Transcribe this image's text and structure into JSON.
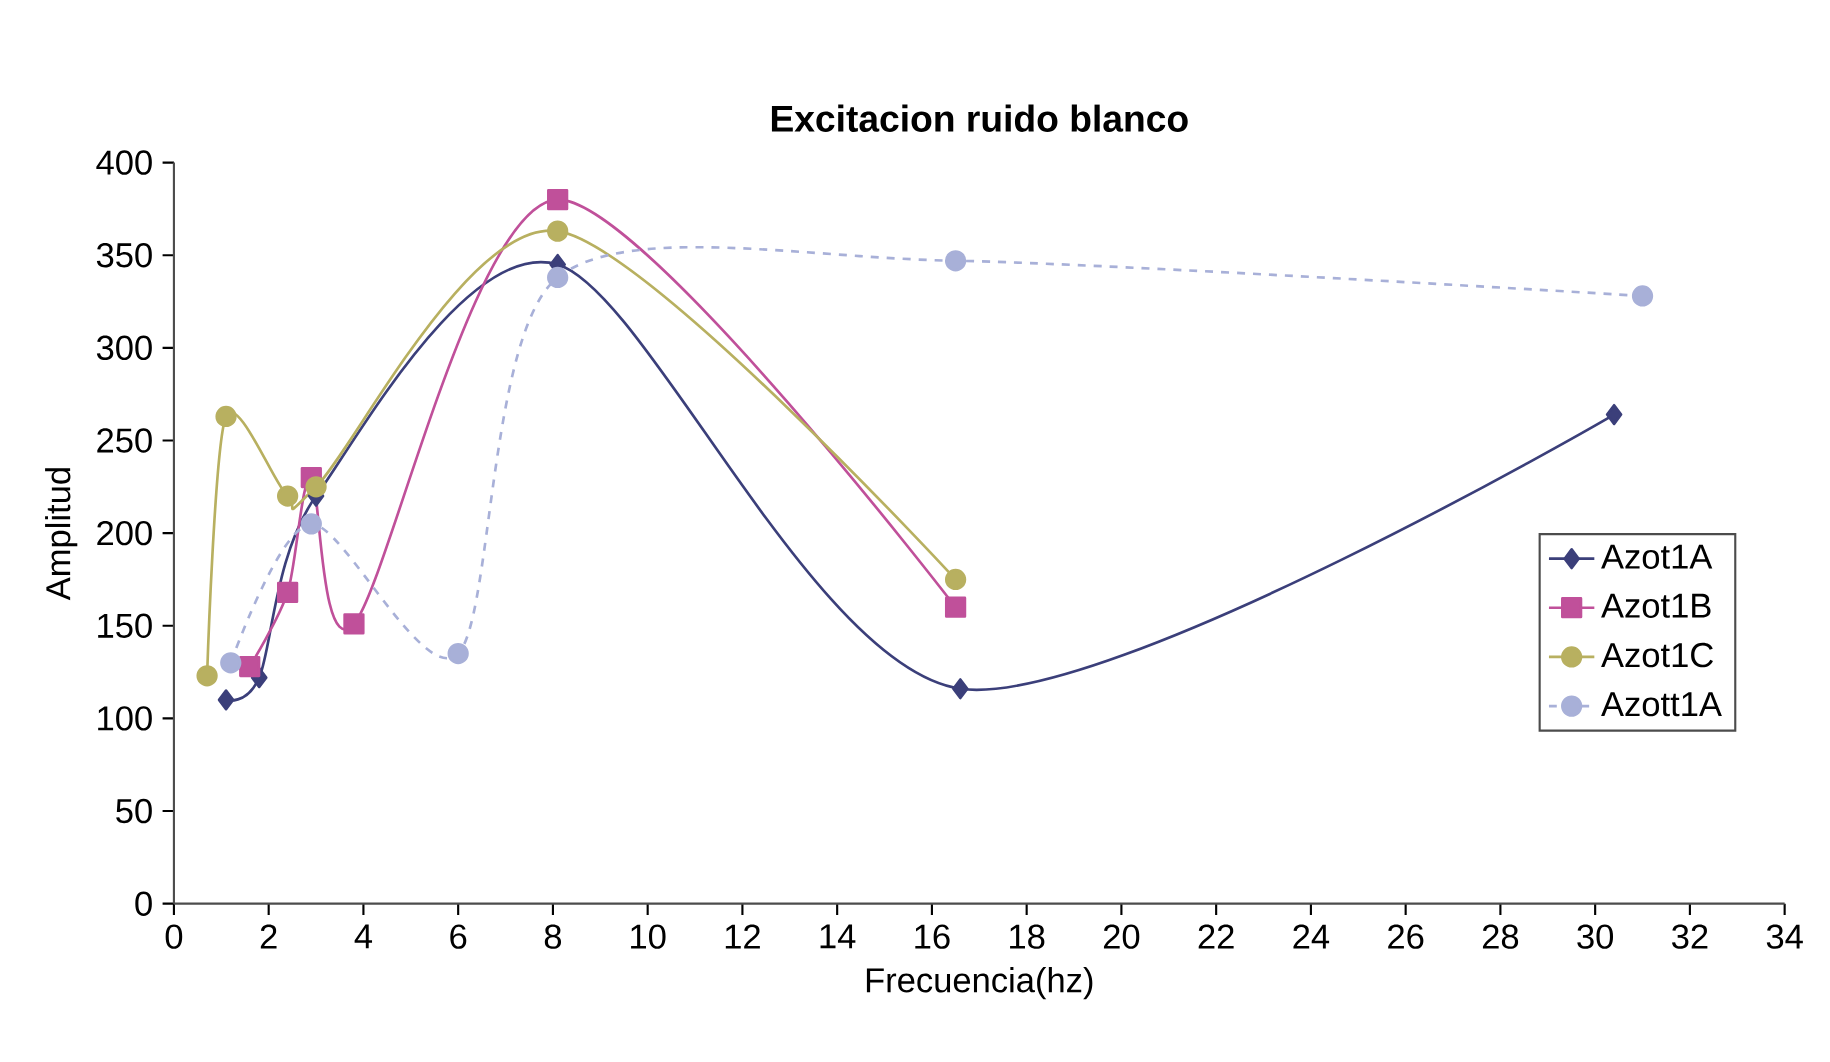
{
  "chart_data": {
    "type": "line",
    "title": "Excitacion ruido blanco",
    "xlabel": "Frecuencia(hz)",
    "ylabel": "Amplitud",
    "xlim": [
      0,
      34
    ],
    "xticks": [
      0,
      2,
      4,
      6,
      8,
      10,
      12,
      14,
      16,
      18,
      20,
      22,
      24,
      26,
      28,
      30,
      32,
      34
    ],
    "ylim": [
      0,
      400
    ],
    "yticks": [
      0,
      50,
      100,
      150,
      200,
      250,
      300,
      350,
      400
    ],
    "grid": false,
    "legend": "right",
    "series": [
      {
        "name": "Azot1A",
        "color": "#3b3f7a",
        "marker": "diamond",
        "line_style": "solid",
        "x": [
          1.1,
          1.8,
          3.0,
          8.1,
          16.6,
          30.4
        ],
        "values": [
          110,
          122,
          220,
          345,
          116,
          264
        ]
      },
      {
        "name": "Azot1B",
        "color": "#c0509a",
        "marker": "square",
        "line_style": "solid",
        "x": [
          1.6,
          2.4,
          2.9,
          3.8,
          8.1,
          16.5
        ],
        "values": [
          128,
          168,
          230,
          151,
          380,
          160
        ]
      },
      {
        "name": "Azot1C",
        "color": "#b8b060",
        "marker": "circle",
        "line_style": "solid",
        "x": [
          0.7,
          1.1,
          2.4,
          3.0,
          8.1,
          16.5
        ],
        "values": [
          123,
          263,
          220,
          225,
          363,
          175
        ]
      },
      {
        "name": "Azott1A",
        "color": "#a8b0d8",
        "marker": "circle",
        "line_style": "dashed",
        "x": [
          1.2,
          2.9,
          6.0,
          8.1,
          16.5,
          31.0
        ],
        "values": [
          130,
          205,
          135,
          338,
          347,
          328
        ]
      }
    ]
  }
}
